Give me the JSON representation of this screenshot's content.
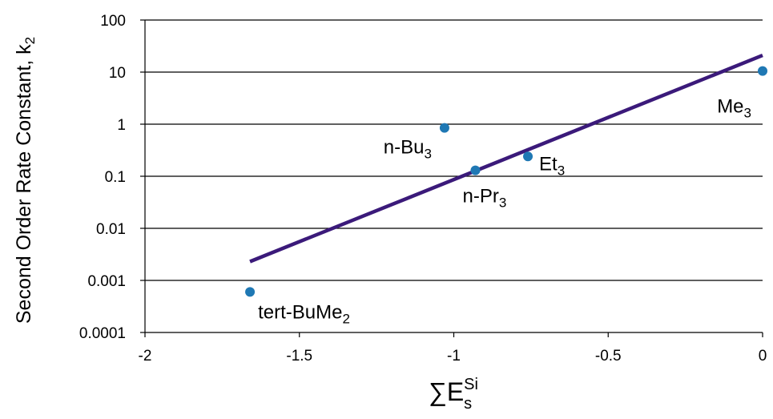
{
  "chart_data": {
    "type": "scatter",
    "title": "",
    "xlabel": {
      "main": "∑E",
      "sub": "s",
      "sup": "Si"
    },
    "ylabel": {
      "main": "Second Order Rate Constant, k",
      "sub": "2"
    },
    "x_scale": "linear",
    "y_scale": "log",
    "xlim": [
      -2,
      0
    ],
    "ylim": [
      0.0001,
      100
    ],
    "x_ticks": [
      -2,
      -1.5,
      -1,
      -0.5,
      0
    ],
    "x_tick_labels": [
      "-2",
      "-1.5",
      "-1",
      "-0.5",
      "0"
    ],
    "y_ticks": [
      0.0001,
      0.001,
      0.01,
      0.1,
      1,
      10,
      100
    ],
    "y_tick_labels": [
      "0.0001",
      "0.001",
      "0.01",
      "0.1",
      "1",
      "10",
      "100"
    ],
    "grid": {
      "horizontal": true,
      "vertical": false
    },
    "points": [
      {
        "x": -1.66,
        "y": 0.0006,
        "label": "tert-BuMe",
        "label_sub": "2"
      },
      {
        "x": -1.03,
        "y": 0.85,
        "label": "n-Bu",
        "label_sub": "3"
      },
      {
        "x": -0.93,
        "y": 0.13,
        "label": "n-Pr",
        "label_sub": "3"
      },
      {
        "x": -0.76,
        "y": 0.24,
        "label": "Et",
        "label_sub": "3"
      },
      {
        "x": 0,
        "y": 10.5,
        "label": "Me",
        "label_sub": "3"
      }
    ],
    "trendline": {
      "x": [
        -1.66,
        0
      ],
      "y": [
        0.0023,
        21
      ]
    },
    "colors": {
      "points": "#1f78b4",
      "trendline": "#3b1a7a",
      "grid": "#000000"
    }
  }
}
